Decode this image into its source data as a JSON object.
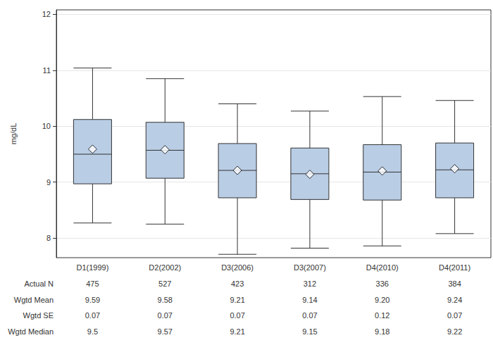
{
  "chart_data": {
    "type": "boxplot",
    "ylabel": "mg/dL",
    "categories": [
      "D1(1999)",
      "D2(2002)",
      "D3(2006)",
      "D3(2007)",
      "D4(2010)",
      "D4(2011)"
    ],
    "whisker_low": [
      8.27,
      8.25,
      7.71,
      7.82,
      7.86,
      8.08
    ],
    "q1": [
      8.97,
      9.07,
      8.72,
      8.69,
      8.68,
      8.72
    ],
    "median": [
      9.5,
      9.57,
      9.21,
      9.15,
      9.18,
      9.22
    ],
    "q3": [
      10.12,
      10.07,
      9.69,
      9.61,
      9.67,
      9.7
    ],
    "whisker_high": [
      11.04,
      10.85,
      10.4,
      10.27,
      10.53,
      10.46
    ],
    "mean": [
      9.59,
      9.58,
      9.21,
      9.14,
      9.2,
      9.24
    ],
    "color": "#b9cde5",
    "marker": "diamond",
    "ylim": [
      7.65,
      12.08
    ],
    "yticks": [
      8,
      9,
      10,
      11,
      12
    ],
    "grid": true,
    "table": {
      "rows": [
        {
          "label": "Actual N",
          "values": [
            "475",
            "527",
            "423",
            "312",
            "336",
            "384"
          ]
        },
        {
          "label": "Wgtd Mean",
          "values": [
            "9.59",
            "9.58",
            "9.21",
            "9.14",
            "9.20",
            "9.24"
          ]
        },
        {
          "label": "Wgtd SE",
          "values": [
            "0.07",
            "0.07",
            "0.07",
            "0.07",
            "0.12",
            "0.07"
          ]
        },
        {
          "label": "Wgtd Median",
          "values": [
            "9.5",
            "9.57",
            "9.21",
            "9.15",
            "9.18",
            "9.22"
          ]
        }
      ]
    }
  }
}
